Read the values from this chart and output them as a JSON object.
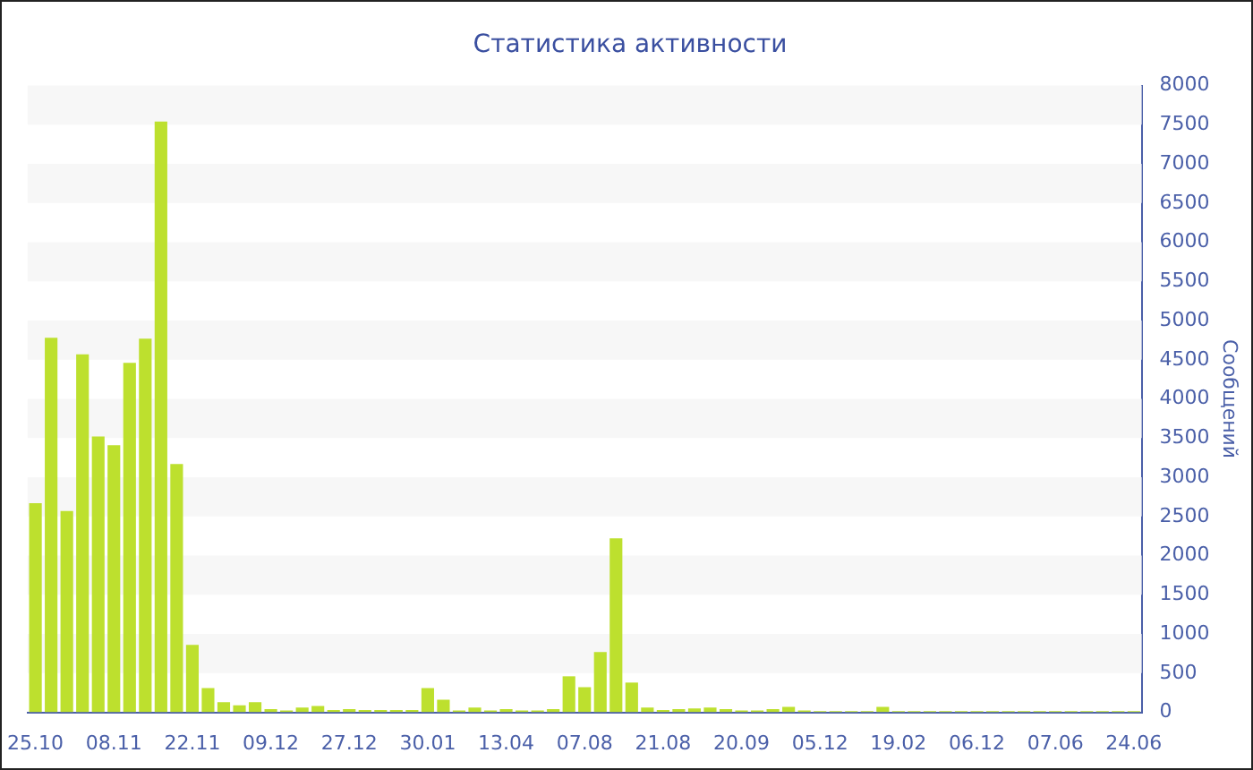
{
  "chart_data": {
    "type": "bar",
    "title": "Статистика активности",
    "ylabel": "Сообщений",
    "categories": [
      "25.10",
      null,
      null,
      null,
      null,
      "08.11",
      null,
      null,
      null,
      null,
      "22.11",
      null,
      null,
      null,
      null,
      "09.12",
      null,
      null,
      null,
      null,
      "27.12",
      null,
      null,
      null,
      null,
      "30.01",
      null,
      null,
      null,
      null,
      "13.04",
      null,
      null,
      null,
      null,
      "07.08",
      null,
      null,
      null,
      null,
      "21.08",
      null,
      null,
      null,
      null,
      "20.09",
      null,
      null,
      null,
      null,
      "05.12",
      null,
      null,
      null,
      null,
      "19.02",
      null,
      null,
      null,
      null,
      "06.12",
      null,
      null,
      null,
      null,
      "07.06",
      null,
      null,
      null,
      null,
      "24.06"
    ],
    "values": [
      2670,
      4780,
      2570,
      4570,
      3520,
      3410,
      4460,
      4770,
      7540,
      3170,
      860,
      310,
      130,
      90,
      130,
      40,
      25,
      60,
      80,
      30,
      40,
      30,
      30,
      30,
      30,
      310,
      160,
      25,
      60,
      25,
      40,
      25,
      25,
      40,
      460,
      320,
      770,
      2220,
      380,
      60,
      30,
      40,
      50,
      60,
      40,
      25,
      25,
      40,
      70,
      25,
      15,
      15,
      15,
      15,
      70,
      15,
      15,
      15,
      15,
      15,
      15,
      15,
      15,
      15,
      15,
      15,
      15,
      15,
      15,
      15,
      15
    ],
    "color": "#bde02e",
    "ylim": [
      0,
      8000
    ],
    "yticks": [
      0,
      500,
      1000,
      1500,
      2000,
      2500,
      3000,
      3500,
      4000,
      4500,
      5000,
      5500,
      6000,
      6500,
      7000,
      7500,
      8000
    ],
    "bands": [
      {
        "axis": "y",
        "from": 500,
        "to": 1000,
        "color": "#f7f7f7"
      },
      {
        "axis": "y",
        "from": 1500,
        "to": 2000,
        "color": "#f7f7f7"
      },
      {
        "axis": "y",
        "from": 2500,
        "to": 3000,
        "color": "#f7f7f7"
      },
      {
        "axis": "y",
        "from": 3500,
        "to": 4000,
        "color": "#f7f7f7"
      },
      {
        "axis": "y",
        "from": 4500,
        "to": 5000,
        "color": "#f7f7f7"
      },
      {
        "axis": "y",
        "from": 5500,
        "to": 6000,
        "color": "#f7f7f7"
      },
      {
        "axis": "y",
        "from": 6500,
        "to": 7000,
        "color": "#f7f7f7"
      },
      {
        "axis": "y",
        "from": 7500,
        "to": 8000,
        "color": "#f7f7f7"
      }
    ]
  }
}
